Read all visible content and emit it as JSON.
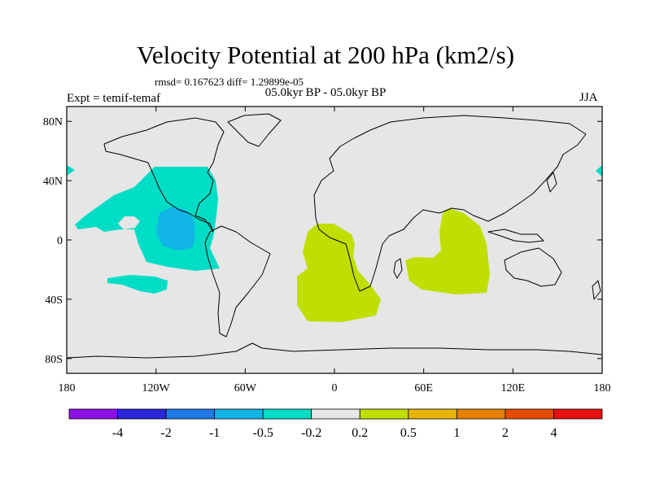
{
  "header": {
    "title": "Velocity Potential at 200 hPa (km2/s)",
    "stats": "rmsd= 0.167623 diff= 1.29899e-05",
    "experiment": "Expt = temif-temaf",
    "period": "05.0kyr BP - 05.0kyr BP",
    "season": "JJA"
  },
  "map": {
    "projection": "cylindrical equidistant",
    "lon_range": [
      -180,
      180
    ],
    "lat_range": [
      -90,
      90
    ],
    "lat_ticks": [
      {
        "value": 80,
        "label": "80N"
      },
      {
        "value": 40,
        "label": "40N"
      },
      {
        "value": 0,
        "label": "0"
      },
      {
        "value": -40,
        "label": "40S"
      },
      {
        "value": -80,
        "label": "80S"
      }
    ],
    "lon_ticks": [
      {
        "value": -180,
        "label": "180"
      },
      {
        "value": -120,
        "label": "120W"
      },
      {
        "value": -60,
        "label": "60W"
      },
      {
        "value": 0,
        "label": "0"
      },
      {
        "value": 60,
        "label": "60E"
      },
      {
        "value": 120,
        "label": "120E"
      },
      {
        "value": 180,
        "label": "180"
      }
    ],
    "background_color": "#e6e6e6",
    "colors": {
      "neg_0_5": "#00ddc6",
      "neg_1": "#10b4e6",
      "pos_0_2": "#bfdf00"
    }
  },
  "colorbar": {
    "colors": [
      "#8c10e6",
      "#2a26d8",
      "#1e78e6",
      "#10b4e6",
      "#00ddc6",
      "#e6e6e6",
      "#bfdf00",
      "#e6b400",
      "#e68000",
      "#e64c00",
      "#e61010"
    ],
    "labels": [
      "-4",
      "-2",
      "-1",
      "-0.5",
      "-0.2",
      "0.2",
      "0.5",
      "1",
      "2",
      "4"
    ]
  }
}
